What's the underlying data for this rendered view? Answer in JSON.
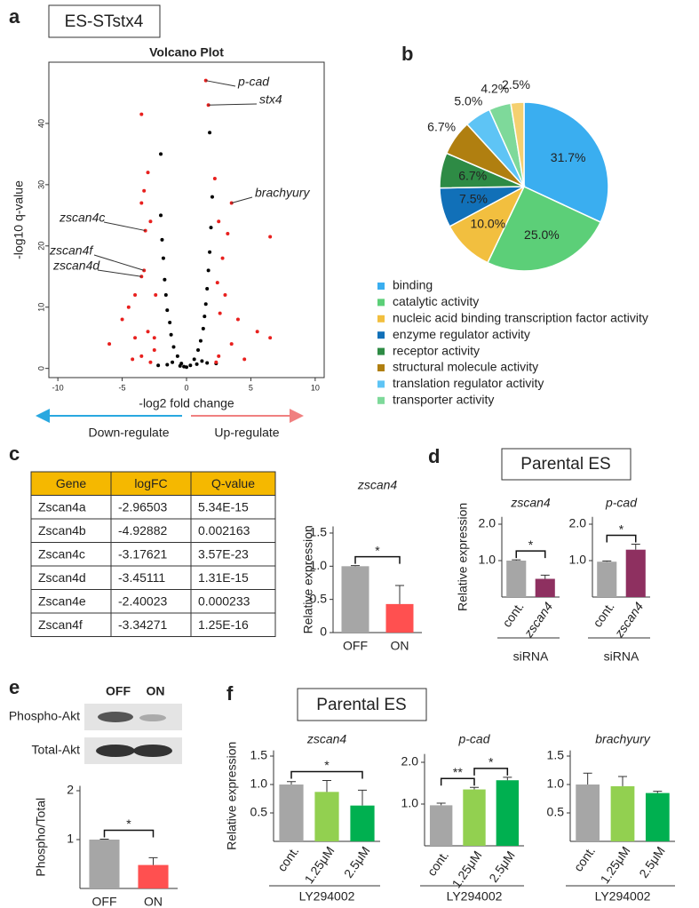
{
  "panel_labels": [
    "a",
    "b",
    "c",
    "d",
    "e",
    "f"
  ],
  "boxes": [
    "ES-STstx4",
    "Parental ES",
    "Parental ES"
  ],
  "direction_labels": [
    "Down-regulate",
    "Up-regulate"
  ],
  "table": {
    "header": [
      "Gene",
      "logFC",
      "Q-value"
    ],
    "rows": [
      [
        "Zscan4a",
        "-2.96503",
        "5.34E-15"
      ],
      [
        "Zscan4b",
        "-4.92882",
        "0.002163"
      ],
      [
        "Zscan4c",
        "-3.17621",
        "3.57E-23"
      ],
      [
        "Zscan4d",
        "-3.45111",
        "1.31E-15"
      ],
      [
        "Zscan4e",
        "-2.40023",
        "0.000233"
      ],
      [
        "Zscan4f",
        "-3.34271",
        "1.25E-16"
      ]
    ]
  },
  "blot": {
    "lanes": [
      "OFF",
      "ON"
    ],
    "rows": [
      "Phospho-Akt",
      "Total-Akt"
    ]
  },
  "chart_data": [
    {
      "type": "scatter",
      "title": "Volcano Plot",
      "x_label": "-log2 fold change",
      "y_label": "-log10 q-value",
      "xlim": [
        -10.7,
        10.7
      ],
      "ylim": [
        -1.5,
        50
      ],
      "xticks": [
        -10,
        -5,
        0,
        5,
        10
      ],
      "yticks": [
        0,
        10,
        20,
        30,
        40
      ],
      "series": [
        {
          "color": "#000000",
          "x": [
            0,
            0.3,
            -0.4,
            0.6,
            -0.7,
            0.9,
            -1,
            1.1,
            -1.2,
            1.3,
            -1.3,
            1.4,
            -1.5,
            1.5,
            -1.6,
            1.6,
            -1.7,
            1.7,
            -1.8,
            1.8,
            -1.9,
            1.9,
            -2,
            2,
            -1.1,
            1.2,
            -0.2,
            -2,
            1.8,
            -0.5,
            0.8,
            -1.5,
            1.6,
            -2.2,
            2.3
          ],
          "values": [
            0.2,
            0.5,
            0.8,
            1.5,
            2,
            3,
            3.5,
            4.5,
            5.5,
            6.5,
            7.5,
            8.5,
            9.5,
            10.5,
            12,
            13,
            14.5,
            16,
            18,
            19,
            21,
            23,
            25,
            28,
            1,
            1.2,
            0.3,
            35,
            38.5,
            0.4,
            0.7,
            0.6,
            0.9,
            0.5,
            0.8
          ]
        },
        {
          "color": "#e8201e",
          "x": [
            -3.5,
            -3,
            -3.3,
            -3.5,
            -2.8,
            -3.2,
            -3.3,
            -3.5,
            -4,
            -4.5,
            -5,
            -3,
            -4,
            -2.5,
            -3.5,
            -6,
            -2.8,
            -4.2,
            1.5,
            1.7,
            3.5,
            2.2,
            2.5,
            3.2,
            6.5,
            2.8,
            3,
            2.6,
            4,
            5.5,
            6.5,
            3.5,
            2.5,
            4.5,
            2.3,
            -2.5,
            -2.4,
            2.4
          ],
          "values": [
            41.5,
            32,
            29,
            27,
            24,
            22.5,
            16,
            15,
            12,
            10,
            8,
            6,
            5,
            3,
            2,
            4,
            1,
            1.5,
            47,
            43,
            27,
            31,
            24,
            22,
            21.5,
            18,
            12,
            9,
            8,
            6,
            5,
            4,
            2,
            1.5,
            1,
            5,
            12,
            14
          ]
        }
      ],
      "annotations": [
        {
          "text": "p-cad",
          "x": 1.5,
          "y": 47
        },
        {
          "text": "stx4",
          "x": 1.7,
          "y": 43
        },
        {
          "text": "brachyury",
          "x": 3.5,
          "y": 27
        },
        {
          "text": "zscan4c",
          "x": -3.2,
          "y": 22.5
        },
        {
          "text": "zscan4f",
          "x": -3.3,
          "y": 16
        },
        {
          "text": "zscan4d",
          "x": -3.5,
          "y": 15
        }
      ]
    },
    {
      "type": "pie",
      "legend": "bottom",
      "categories": [
        "binding",
        "catalytic activity",
        "nucleic acid binding transcription factor activity",
        "enzyme regulator activity",
        "receptor activity",
        "structural molecule activity",
        "translation regulator activity",
        "transporter activity",
        null
      ],
      "values": [
        31.7,
        25.0,
        10.0,
        7.5,
        6.7,
        6.7,
        5.0,
        4.2,
        2.5
      ],
      "value_labels": [
        "31.7%",
        "25.0%",
        "10.0%",
        "7.5%",
        "6.7%",
        "6.7%",
        "5.0%",
        "4.2%",
        "2.5%"
      ],
      "colors": [
        "#3aaef0",
        "#5ccf78",
        "#f2bf3f",
        "#1170b8",
        "#2e8b45",
        "#b07f10",
        "#5ec4f5",
        "#7ed99a",
        "#f5d070"
      ]
    },
    {
      "type": "bar",
      "title": "zscan4",
      "y_label": "Relative  expression",
      "categories": [
        "OFF",
        "ON"
      ],
      "values": [
        1.0,
        0.43
      ],
      "errors": [
        0.01,
        0.28
      ],
      "colors": [
        "#a6a6a6",
        "#ff5050"
      ],
      "ylim": [
        0,
        1.6
      ],
      "yticks": [
        0,
        0.5,
        {
          "value": 1,
          "label": "1.0"
        },
        1.5
      ],
      "significance": [
        {
          "pair": [
            0,
            1
          ],
          "label": "*"
        }
      ]
    },
    {
      "type": "bar",
      "title": "zscan4",
      "y_label": "Relative  expression",
      "categories": [
        "cont.",
        "zscan4"
      ],
      "values": [
        1.0,
        0.5
      ],
      "errors": [
        0.02,
        0.1
      ],
      "colors": [
        "#a6a6a6",
        "#8e3060"
      ],
      "ylim": [
        0,
        2.2
      ],
      "yticks": [
        {
          "value": 1,
          "label": "1.0"
        },
        {
          "value": 2,
          "label": "2.0"
        }
      ],
      "x_group_label": "siRNA",
      "significance": [
        {
          "pair": [
            0,
            1
          ],
          "label": "*"
        }
      ]
    },
    {
      "type": "bar",
      "title": "p-cad",
      "categories": [
        "cont.",
        "zscan4"
      ],
      "values": [
        0.97,
        1.3
      ],
      "errors": [
        0.02,
        0.15
      ],
      "colors": [
        "#a6a6a6",
        "#8e3060"
      ],
      "ylim": [
        0,
        2.2
      ],
      "yticks": [
        {
          "value": 1,
          "label": "1.0"
        },
        {
          "value": 2,
          "label": "2.0"
        }
      ],
      "x_group_label": "siRNA",
      "significance": [
        {
          "pair": [
            0,
            1
          ],
          "label": "*"
        }
      ]
    },
    {
      "type": "bar",
      "y_label": "Phospho/Total",
      "categories": [
        "OFF",
        "ON"
      ],
      "values": [
        1.0,
        0.48
      ],
      "errors": [
        0.01,
        0.15
      ],
      "colors": [
        "#a6a6a6",
        "#ff5050"
      ],
      "ylim": [
        0,
        2.1
      ],
      "yticks": [
        1,
        2
      ],
      "significance": [
        {
          "pair": [
            0,
            1
          ],
          "label": "*"
        }
      ]
    },
    {
      "type": "bar",
      "title": "zscan4",
      "y_label": "Relative  expression",
      "categories": [
        "cont.",
        "1.25μM",
        "2.5μM"
      ],
      "values": [
        1.0,
        0.87,
        0.63
      ],
      "errors": [
        0.05,
        0.2,
        0.27
      ],
      "colors": [
        "#a6a6a6",
        "#92d050",
        "#00b050"
      ],
      "ylim": [
        0,
        1.6
      ],
      "yticks": [
        0.5,
        {
          "value": 1,
          "label": "1.0"
        },
        1.5
      ],
      "x_group_label": "LY294002",
      "significance": [
        {
          "pair": [
            0,
            2
          ],
          "label": "*"
        }
      ]
    },
    {
      "type": "bar",
      "title": "p-cad",
      "categories": [
        "cont.",
        "1.25μM",
        "2.5μM"
      ],
      "values": [
        0.97,
        1.35,
        1.57
      ],
      "errors": [
        0.05,
        0.05,
        0.07
      ],
      "colors": [
        "#a6a6a6",
        "#92d050",
        "#00b050"
      ],
      "ylim": [
        0,
        2.2
      ],
      "yticks": [
        {
          "value": 1,
          "label": "1.0"
        },
        {
          "value": 2,
          "label": "2.0"
        }
      ],
      "x_group_label": "LY294002",
      "significance": [
        {
          "pair": [
            0,
            1
          ],
          "label": "**"
        },
        {
          "pair": [
            1,
            2
          ],
          "label": "*"
        }
      ]
    },
    {
      "type": "bar",
      "title": "brachyury",
      "categories": [
        "cont.",
        "1.25μM",
        "2.5μM"
      ],
      "values": [
        1.0,
        0.97,
        0.85
      ],
      "errors": [
        0.2,
        0.17,
        0.03
      ],
      "colors": [
        "#a6a6a6",
        "#92d050",
        "#00b050"
      ],
      "ylim": [
        0,
        1.6
      ],
      "yticks": [
        0.5,
        {
          "value": 1,
          "label": "1.0"
        },
        1.5
      ],
      "x_group_label": "LY294002"
    }
  ]
}
